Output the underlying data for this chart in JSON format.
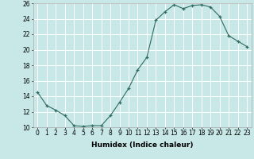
{
  "x": [
    0,
    1,
    2,
    3,
    4,
    5,
    6,
    7,
    8,
    9,
    10,
    11,
    12,
    13,
    14,
    15,
    16,
    17,
    18,
    19,
    20,
    21,
    22,
    23
  ],
  "y": [
    14.5,
    12.8,
    12.2,
    11.5,
    10.2,
    10.1,
    10.2,
    10.2,
    11.5,
    13.2,
    15.0,
    17.4,
    19.0,
    23.8,
    24.9,
    25.8,
    25.3,
    25.7,
    25.8,
    25.5,
    24.3,
    21.8,
    21.1,
    20.4
  ],
  "xlabel": "Humidex (Indice chaleur)",
  "ylim": [
    10,
    26
  ],
  "xlim": [
    -0.5,
    23.5
  ],
  "yticks": [
    10,
    12,
    14,
    16,
    18,
    20,
    22,
    24,
    26
  ],
  "xtick_labels": [
    "0",
    "1",
    "2",
    "3",
    "4",
    "5",
    "6",
    "7",
    "8",
    "9",
    "10",
    "11",
    "12",
    "13",
    "14",
    "15",
    "16",
    "17",
    "18",
    "19",
    "20",
    "21",
    "22",
    "23"
  ],
  "line_color": "#2d6b5e",
  "marker": "+",
  "bg_color": "#c8e8e8",
  "grid_color": "#ffffff",
  "label_fontsize": 6.5,
  "tick_fontsize": 5.5
}
